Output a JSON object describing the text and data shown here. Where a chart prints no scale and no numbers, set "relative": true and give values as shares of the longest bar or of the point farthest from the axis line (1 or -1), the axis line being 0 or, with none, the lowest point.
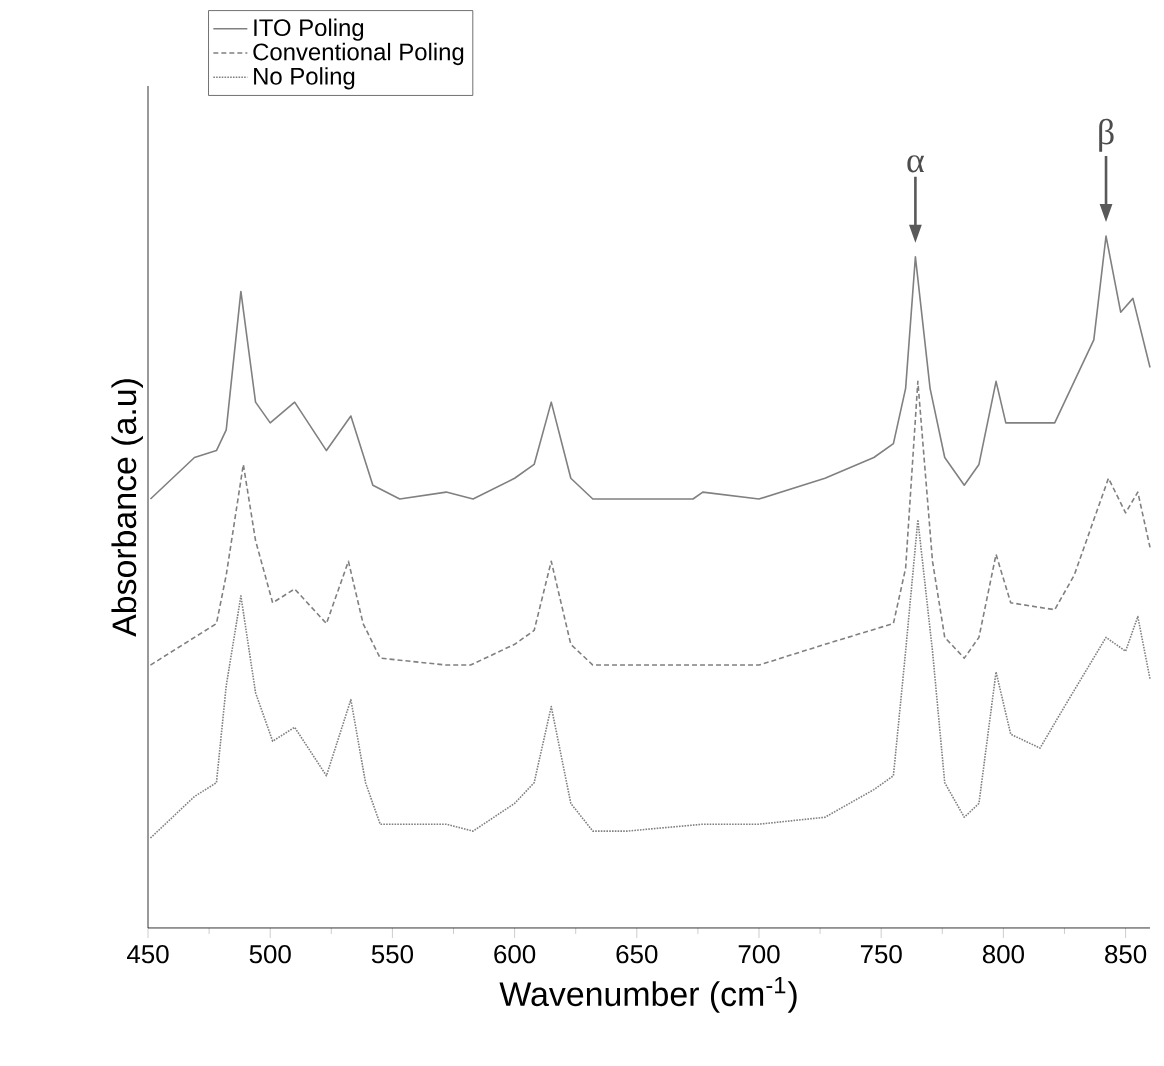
{
  "chart_data": {
    "type": "line",
    "xlabel": "Wavenumber (cm$^{-1}$)",
    "ylabel": "Absorbance (a.u)",
    "relative": true,
    "xlim": [
      450,
      860
    ],
    "xticks": [
      450,
      500,
      550,
      600,
      650,
      700,
      750,
      800,
      850
    ],
    "legend": "top left",
    "marker": "none",
    "annotations": [
      {
        "text": "α",
        "x": 764,
        "y": 0.97
      },
      {
        "text": "β",
        "x": 842,
        "y": 1.0
      }
    ],
    "series": [
      {
        "name": "ITO Poling",
        "color": "#808080",
        "line_style": "solid",
        "x": [
          451,
          469,
          478,
          482,
          488,
          494,
          500,
          510,
          523,
          533,
          542,
          553,
          572,
          583,
          600,
          608,
          615,
          623,
          632,
          655,
          673,
          677,
          700,
          727,
          747,
          755,
          760,
          764,
          770,
          776,
          784,
          790,
          797,
          801,
          821,
          829,
          837,
          842,
          848,
          853,
          860
        ],
        "values": [
          0.62,
          0.68,
          0.69,
          0.72,
          0.92,
          0.76,
          0.73,
          0.76,
          0.69,
          0.74,
          0.64,
          0.62,
          0.63,
          0.62,
          0.65,
          0.67,
          0.76,
          0.65,
          0.62,
          0.62,
          0.62,
          0.63,
          0.62,
          0.65,
          0.68,
          0.7,
          0.78,
          0.97,
          0.78,
          0.68,
          0.64,
          0.67,
          0.79,
          0.73,
          0.73,
          0.79,
          0.85,
          1.0,
          0.89,
          0.91,
          0.81
        ]
      },
      {
        "name": "Conventional Poling",
        "color": "#808080",
        "line_style": "dashed",
        "x": [
          451,
          469,
          478,
          482,
          489,
          494,
          501,
          510,
          523,
          532,
          538,
          545,
          572,
          582,
          600,
          608,
          615,
          623,
          632,
          673,
          700,
          727,
          755,
          760,
          765,
          771,
          776,
          784,
          790,
          797,
          803,
          821,
          829,
          843,
          850,
          855,
          860
        ],
        "values": [
          0.38,
          0.42,
          0.44,
          0.51,
          0.67,
          0.56,
          0.47,
          0.49,
          0.44,
          0.53,
          0.44,
          0.39,
          0.38,
          0.38,
          0.41,
          0.43,
          0.53,
          0.41,
          0.38,
          0.38,
          0.38,
          0.41,
          0.44,
          0.52,
          0.79,
          0.53,
          0.42,
          0.39,
          0.42,
          0.54,
          0.47,
          0.46,
          0.51,
          0.65,
          0.6,
          0.63,
          0.55
        ]
      },
      {
        "name": "No Poling",
        "color": "#808080",
        "line_style": "dotted",
        "x": [
          451,
          469,
          478,
          482,
          488,
          494,
          501,
          510,
          523,
          533,
          539,
          545,
          572,
          583,
          600,
          608,
          615,
          623,
          632,
          646,
          677,
          700,
          727,
          747,
          755,
          760,
          765,
          771,
          776,
          784,
          790,
          797,
          803,
          815,
          825,
          842,
          850,
          855,
          860
        ],
        "values": [
          0.13,
          0.19,
          0.21,
          0.35,
          0.48,
          0.34,
          0.27,
          0.29,
          0.22,
          0.33,
          0.21,
          0.15,
          0.15,
          0.14,
          0.18,
          0.21,
          0.32,
          0.18,
          0.14,
          0.14,
          0.15,
          0.15,
          0.16,
          0.2,
          0.22,
          0.4,
          0.59,
          0.4,
          0.21,
          0.16,
          0.18,
          0.37,
          0.28,
          0.26,
          0.32,
          0.42,
          0.4,
          0.45,
          0.36
        ]
      }
    ]
  }
}
